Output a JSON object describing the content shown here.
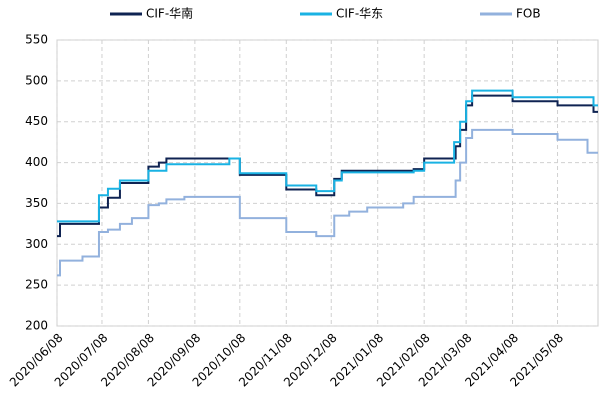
{
  "chart_data": {
    "type": "line",
    "step": "post",
    "x": [
      "2020/06/08",
      "2020/06/10",
      "2020/06/25",
      "2020/07/06",
      "2020/07/12",
      "2020/07/20",
      "2020/07/28",
      "2020/08/08",
      "2020/08/15",
      "2020/08/20",
      "2020/09/01",
      "2020/10/01",
      "2020/10/08",
      "2020/11/08",
      "2020/11/28",
      "2020/12/10",
      "2020/12/15",
      "2020/12/20",
      "2021/01/01",
      "2021/01/25",
      "2021/02/01",
      "2021/02/08",
      "2021/02/28",
      "2021/03/01",
      "2021/03/04",
      "2021/03/08",
      "2021/03/12",
      "2021/04/08",
      "2021/05/08",
      "2021/05/28",
      "2021/06/01",
      "2021/06/04"
    ],
    "series": [
      {
        "name": "CIF-华南",
        "color": "#0f2352",
        "values": [
          310,
          325,
          325,
          345,
          357,
          375,
          375,
          395,
          400,
          405,
          405,
          405,
          385,
          367,
          360,
          380,
          390,
          390,
          390,
          390,
          392,
          405,
          405,
          420,
          440,
          470,
          482,
          475,
          470,
          470,
          462,
          462
        ]
      },
      {
        "name": "CIF-华东",
        "color": "#19b2e3",
        "values": [
          328,
          328,
          328,
          360,
          368,
          378,
          378,
          390,
          390,
          398,
          398,
          405,
          387,
          372,
          365,
          378,
          388,
          388,
          388,
          388,
          390,
          400,
          425,
          425,
          450,
          475,
          488,
          480,
          480,
          480,
          470,
          470
        ]
      },
      {
        "name": "FOB",
        "color": "#92b1dd",
        "values": [
          262,
          280,
          285,
          315,
          318,
          325,
          332,
          348,
          350,
          355,
          358,
          358,
          332,
          315,
          310,
          335,
          335,
          340,
          345,
          350,
          358,
          358,
          358,
          378,
          400,
          430,
          440,
          435,
          428,
          412,
          412,
          412
        ]
      }
    ],
    "xlim": [
      "2020/06/08",
      "2021/06/04"
    ],
    "xticks": [
      "2020/06/08",
      "2020/07/08",
      "2020/08/08",
      "2020/09/08",
      "2020/10/08",
      "2020/11/08",
      "2020/12/08",
      "2021/01/08",
      "2021/02/08",
      "2021/03/08",
      "2021/04/08",
      "2021/05/08"
    ],
    "ylim": [
      200,
      550
    ],
    "yticks": [
      200,
      250,
      300,
      350,
      400,
      450,
      500,
      550
    ],
    "grid": true,
    "legend": "top"
  }
}
